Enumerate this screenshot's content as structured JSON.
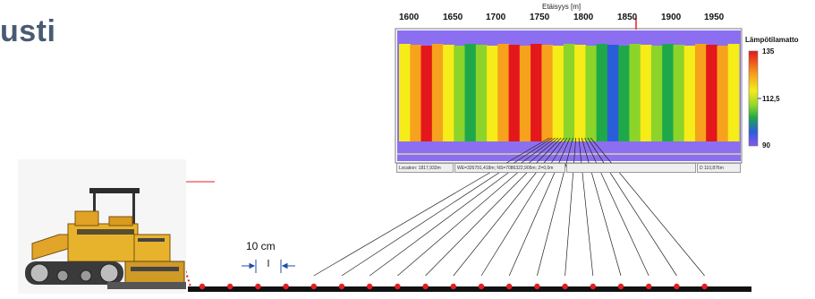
{
  "page": {
    "title": "usti"
  },
  "thermal_view": {
    "axis_title": "Etäisyys [m]",
    "ticks": [
      "1600",
      "1650",
      "1700",
      "1750",
      "1800",
      "1850",
      "1900",
      "1950"
    ],
    "colorbar": {
      "title": "Lämpötilamatto",
      "labels": [
        "135",
        "112,5",
        "90"
      ],
      "colors": [
        "#e4171b",
        "#f7a21c",
        "#f5ec18",
        "#8cd42a",
        "#1fa84a",
        "#2a5ed8",
        "#8a55f0"
      ]
    },
    "status_bar": [
      "Location: 1817,933m",
      "WE=326791,418m; NS=7086322,905m; Z=0,0m",
      "D 110,876m"
    ],
    "colors": {
      "background_band": "#8c6ff0",
      "frame": "#7a7a7a"
    }
  },
  "sensor": {
    "spacing_label": "10 cm",
    "point_color": "#e51e25",
    "point_count": 19
  },
  "colors": {
    "title": "#4a5a72",
    "sensor_body": "#e8212a",
    "paver_body": "#e8b32c"
  }
}
